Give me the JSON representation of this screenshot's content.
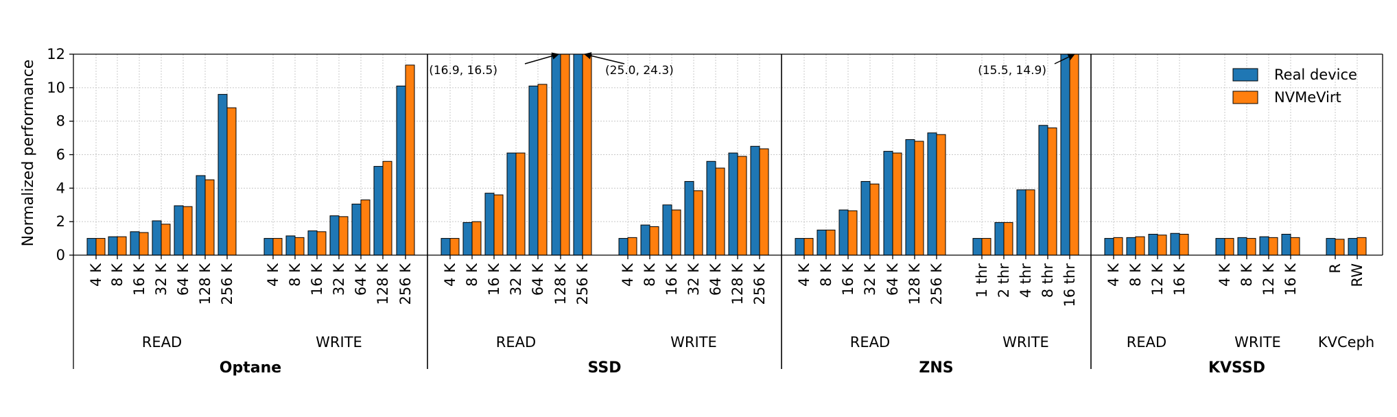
{
  "chart_data": {
    "type": "bar",
    "ylabel": "Normalized performance",
    "ylim": [
      0,
      12
    ],
    "yticks": [
      0,
      2,
      4,
      6,
      8,
      10,
      12
    ],
    "grid": true,
    "legend_position": "top-right",
    "series": [
      {
        "name": "Real device",
        "color": "#1f77b4"
      },
      {
        "name": "NVMeVirt",
        "color": "#ff7f0e"
      }
    ],
    "sections": [
      {
        "label": "Optane",
        "groups": [
          {
            "label": "READ",
            "categories": [
              "4 K",
              "8 K",
              "16 K",
              "32 K",
              "64 K",
              "128 K",
              "256 K"
            ],
            "real": [
              1.0,
              1.1,
              1.4,
              2.05,
              2.95,
              4.75,
              9.6
            ],
            "virt": [
              1.0,
              1.1,
              1.35,
              1.85,
              2.9,
              4.5,
              8.8
            ]
          },
          {
            "label": "WRITE",
            "categories": [
              "4 K",
              "8 K",
              "16 K",
              "32 K",
              "64 K",
              "128 K",
              "256 K"
            ],
            "real": [
              1.0,
              1.15,
              1.45,
              2.35,
              3.05,
              5.3,
              10.1
            ],
            "virt": [
              1.0,
              1.05,
              1.4,
              2.3,
              3.3,
              5.6,
              11.35
            ]
          }
        ]
      },
      {
        "label": "SSD",
        "groups": [
          {
            "label": "READ",
            "categories": [
              "4 K",
              "8 K",
              "16 K",
              "32 K",
              "64 K",
              "128 K",
              "256 K"
            ],
            "real": [
              1.0,
              1.95,
              3.7,
              6.1,
              10.1,
              16.9,
              25.0
            ],
            "virt": [
              1.0,
              2.0,
              3.6,
              6.1,
              10.2,
              16.5,
              24.3
            ]
          },
          {
            "label": "WRITE",
            "categories": [
              "4 K",
              "8 K",
              "16 K",
              "32 K",
              "64 K",
              "128 K",
              "256 K"
            ],
            "real": [
              1.0,
              1.8,
              3.0,
              4.4,
              5.6,
              6.1,
              6.5
            ],
            "virt": [
              1.05,
              1.7,
              2.7,
              3.85,
              5.2,
              5.9,
              6.35
            ]
          }
        ]
      },
      {
        "label": "ZNS",
        "groups": [
          {
            "label": "READ",
            "categories": [
              "4 K",
              "8 K",
              "16 K",
              "32 K",
              "64 K",
              "128 K",
              "256 K"
            ],
            "real": [
              1.0,
              1.5,
              2.7,
              4.4,
              6.2,
              6.9,
              7.3
            ],
            "virt": [
              1.0,
              1.5,
              2.65,
              4.25,
              6.1,
              6.8,
              7.2
            ]
          },
          {
            "label": "WRITE",
            "categories": [
              "1 thr",
              "2 thr",
              "4 thr",
              "8 thr",
              "16 thr"
            ],
            "real": [
              1.0,
              1.95,
              3.9,
              7.75,
              15.5
            ],
            "virt": [
              1.0,
              1.95,
              3.9,
              7.6,
              14.9
            ]
          }
        ]
      },
      {
        "label": "KVSSD",
        "groups": [
          {
            "label": "READ",
            "categories": [
              "4 K",
              "8 K",
              "12 K",
              "16 K"
            ],
            "real": [
              1.0,
              1.05,
              1.25,
              1.3
            ],
            "virt": [
              1.05,
              1.1,
              1.2,
              1.25
            ]
          },
          {
            "label": "WRITE",
            "categories": [
              "4 K",
              "8 K",
              "12 K",
              "16 K"
            ],
            "real": [
              1.0,
              1.05,
              1.1,
              1.25
            ],
            "virt": [
              1.0,
              1.0,
              1.05,
              1.05
            ]
          },
          {
            "label": "KVCeph",
            "categories": [
              "R",
              "RW"
            ],
            "real": [
              1.0,
              1.0
            ],
            "virt": [
              0.95,
              1.05
            ]
          }
        ]
      }
    ],
    "annotations": [
      {
        "text": "(16.9, 16.5)"
      },
      {
        "text": "(25.0, 24.3)"
      },
      {
        "text": "(15.5, 14.9)"
      }
    ]
  }
}
